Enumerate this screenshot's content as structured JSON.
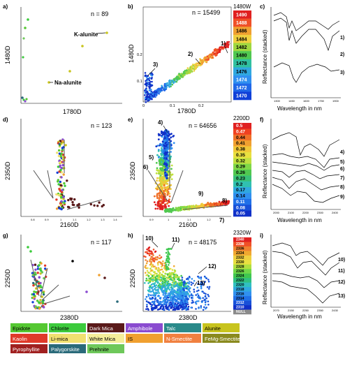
{
  "panels": {
    "a": {
      "letter": "a)",
      "n": "n = 89",
      "xlabel": "1780D",
      "ylabel": "1480D",
      "annotations": [
        "K-alunite",
        "Na-alunite"
      ]
    },
    "b": {
      "letter": "b)",
      "n": "n = 15499",
      "xlabel": "1780D",
      "ylabel": "1480D",
      "scale_title": "1480W",
      "scale_values": [
        "1490",
        "1488",
        "1486",
        "1484",
        "1482",
        "1480",
        "1478",
        "1476",
        "1474",
        "1472",
        "1470"
      ],
      "xticks": [
        "0",
        "0.1",
        "0.2"
      ],
      "yticks": [
        "0.1",
        "0.2"
      ],
      "markers": [
        "1)",
        "2)",
        "3)"
      ]
    },
    "c": {
      "letter": "c)",
      "ylabel": "Reflectance (stacked)",
      "xlabel": "Wavelength in nm",
      "xticks": [
        "1300",
        "1450",
        "1600",
        "1750",
        "1900"
      ],
      "markers": [
        "1)",
        "2)",
        "3)"
      ]
    },
    "d": {
      "letter": "d)",
      "n": "n = 123",
      "xlabel": "2160D",
      "ylabel": "2350D",
      "xticks": [
        "0.8",
        "0.9",
        "1",
        "1.1",
        "1.2",
        "1.3",
        "1.4"
      ]
    },
    "e": {
      "letter": "e)",
      "n": "n = 64656",
      "xlabel": "2160D",
      "ylabel": "2350D",
      "scale_title": "2200D",
      "scale_values": [
        "0.5",
        "0.47",
        "0.44",
        "0.41",
        "0.38",
        "0.35",
        "0.32",
        "0.29",
        "0.26",
        "0.23",
        "0.2",
        "0.17",
        "0.14",
        "0.11",
        "0.08",
        "0.05"
      ],
      "xticks": [
        "0.9",
        "1",
        "1.1",
        "1.2"
      ],
      "markers": [
        "4)",
        "5)",
        "6)",
        "7)",
        "8)",
        "9)"
      ]
    },
    "f": {
      "letter": "f)",
      "ylabel": "Reflectance (stacked)",
      "xlabel": "Wavelength in nm",
      "xticks": [
        "2000",
        "2100",
        "2200",
        "2300",
        "2400"
      ],
      "markers": [
        "4)",
        "5)",
        "6)",
        "7)",
        "8)",
        "9)"
      ]
    },
    "g": {
      "letter": "g)",
      "n": "n = 117",
      "xlabel": "2380D",
      "ylabel": "2250D"
    },
    "h": {
      "letter": "h)",
      "n": "n = 48175",
      "xlabel": "2380D",
      "ylabel": "2250D",
      "scale_title": "2320W",
      "scale_values": [
        "2340",
        "2338",
        "2336",
        "2334",
        "2332",
        "2330",
        "2328",
        "2326",
        "2324",
        "2322",
        "2320",
        "2318",
        "2316",
        "2314",
        "2312",
        "2310",
        "NULL"
      ],
      "markers": [
        "10)",
        "11)",
        "12)",
        "13)"
      ]
    },
    "i": {
      "letter": "i)",
      "ylabel": "Reflectance (stacked)",
      "xlabel": "Wavelength in nm",
      "xticks": [
        "2070",
        "2150",
        "2250",
        "2350",
        "2430"
      ],
      "markers": [
        "10)",
        "11)",
        "12)",
        "13)"
      ]
    }
  },
  "legend": [
    [
      {
        "label": "Epidote",
        "color": "#55c832"
      },
      {
        "label": "Chlorite",
        "color": "#3ccb3c"
      },
      {
        "label": "Dark Mica",
        "color": "#5a1a1a"
      },
      {
        "label": "Amphibole",
        "color": "#8a4bd0"
      },
      {
        "label": "Talc",
        "color": "#2a8a8a"
      },
      {
        "label": "Alunite",
        "color": "#c8c41e"
      }
    ],
    [
      {
        "label": "Kaolin",
        "color": "#e03a2a"
      },
      {
        "label": "Li-mica",
        "color": "#f0e070"
      },
      {
        "label": "White Mica",
        "color": "#f5ee9a"
      },
      {
        "label": "IS",
        "color": "#f0a030"
      },
      {
        "label": "N-Smectite",
        "color": "#f08040"
      },
      {
        "label": "FeMg-Smectite",
        "color": "#8a8a1e"
      }
    ],
    [
      {
        "label": "Pyrophyllite",
        "color": "#a02020"
      },
      {
        "label": "Palygorskite",
        "color": "#2a6a7a"
      },
      {
        "label": "Prehnite",
        "color": "#6ec85a"
      }
    ]
  ],
  "chart_data": [
    {
      "panel": "a",
      "type": "scatter",
      "xlabel": "1780D",
      "ylabel": "1480D",
      "series": [
        {
          "name": "K-alunite",
          "x": [
            0.2
          ],
          "y": [
            0.35
          ]
        },
        {
          "name": "Na-alunite",
          "x": [
            0.08
          ],
          "y": [
            0.12
          ]
        }
      ]
    },
    {
      "panel": "b",
      "type": "scatter",
      "xlabel": "1780D",
      "ylabel": "1480D",
      "xlim": [
        0,
        0.3
      ],
      "ylim": [
        0,
        0.33
      ],
      "trend": {
        "x": [
          0,
          0.3
        ],
        "y": [
          0,
          0.3
        ]
      }
    },
    {
      "panel": "e",
      "type": "scatter",
      "xlabel": "2160D",
      "ylabel": "2350D",
      "xlim": [
        0.8,
        1.3
      ]
    },
    {
      "panel": "h",
      "type": "scatter",
      "xlabel": "2380D",
      "ylabel": "2250D"
    }
  ]
}
